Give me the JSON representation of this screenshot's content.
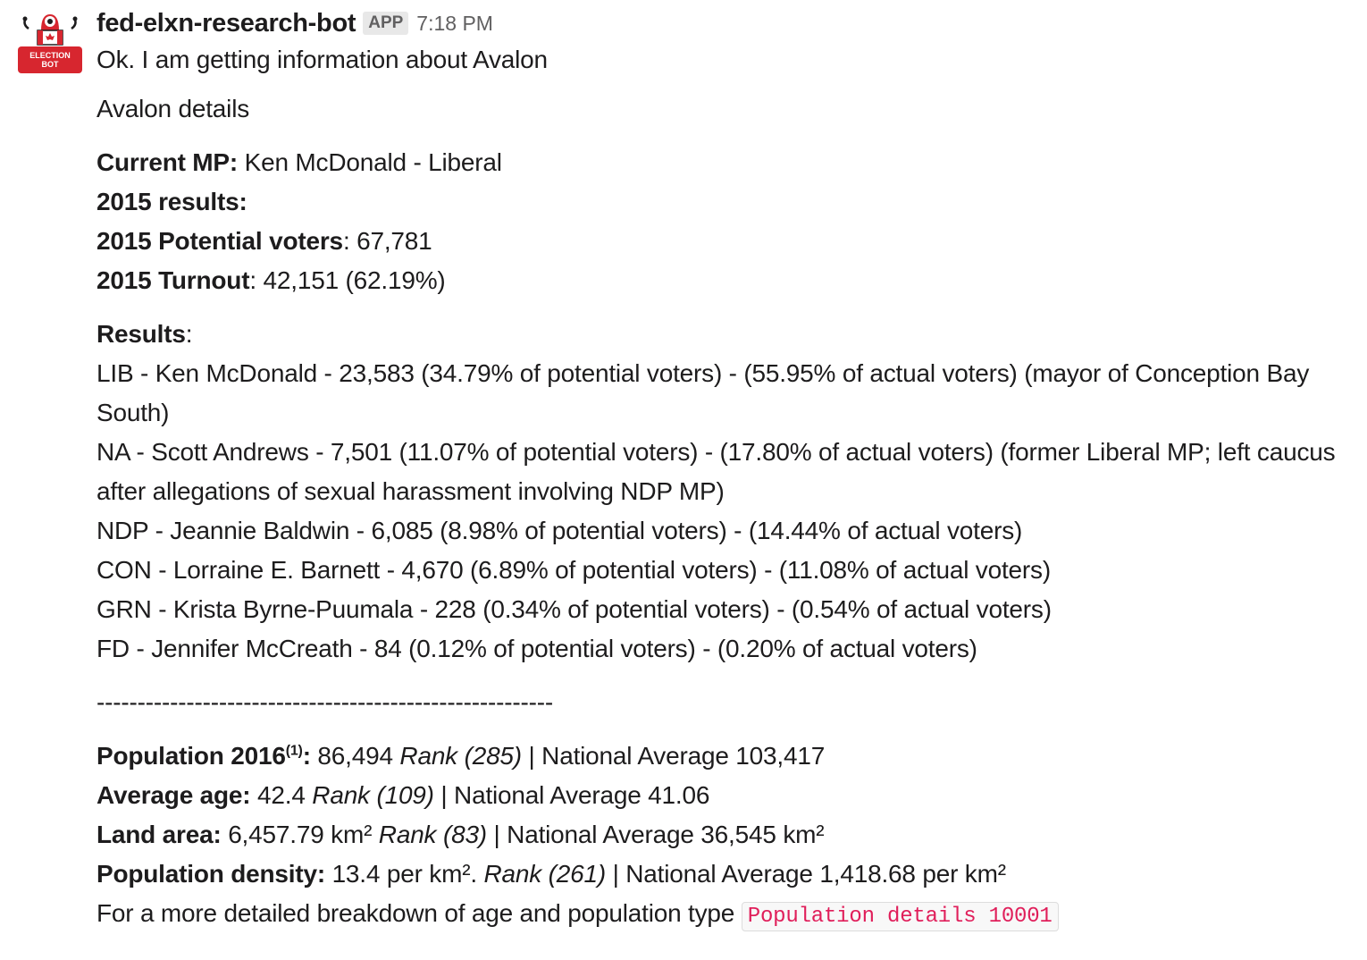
{
  "bot": {
    "name": "fed-elxn-research-bot",
    "badge": "APP",
    "time": "7:18 PM",
    "avatar_text_1": "ELECTION",
    "avatar_text_2": "BOT",
    "avatar_icon": "robot-canada-flag-icon"
  },
  "message": {
    "intro": "Ok. I am getting information about Avalon",
    "details_title": "Avalon details",
    "current_mp_label": "Current MP:",
    "current_mp_value": " Ken McDonald - Liberal",
    "results_2015_label": "2015 results:",
    "potential_voters_label": "2015 Potential voters",
    "potential_voters_value": ": 67,781",
    "turnout_label": "2015 Turnout",
    "turnout_value": ": 42,151 (62.19%)",
    "results_label": "Results",
    "results_colon": ":",
    "results": [
      "LIB - Ken McDonald - 23,583 (34.79% of potential voters) - (55.95% of actual voters) (mayor of Conception Bay South)",
      "NA - Scott Andrews - 7,501 (11.07% of potential voters) - (17.80% of actual voters) (former Liberal MP; left caucus after allegations of sexual harassment involving NDP MP)",
      "NDP - Jeannie Baldwin - 6,085 (8.98% of potential voters) - (14.44% of actual voters)",
      "CON - Lorraine E. Barnett - 4,670 (6.89% of potential voters) - (11.08% of actual voters)",
      "GRN - Krista Byrne-Puumala - 228 (0.34% of potential voters) - (0.54% of actual voters)",
      "FD - Jennifer McCreath - 84 (0.12% of potential voters) - (0.20% of actual voters)"
    ],
    "separator": "--------------------------------------------------------",
    "population": {
      "label": "Population 2016",
      "sup": "(1)",
      "colon": ":",
      "value": " 86,494 ",
      "rank": "Rank (285)",
      "national": " | National Average 103,417"
    },
    "age": {
      "label": "Average age:",
      "value": " 42.4 ",
      "rank": "Rank (109)",
      "national": " | National Average 41.06"
    },
    "land": {
      "label": "Land area:",
      "value": " 6,457.79 km² ",
      "rank": "Rank (83)",
      "national": " | National Average 36,545 km²"
    },
    "density": {
      "label": "Population density:",
      "value": " 13.4 per km². ",
      "rank": "Rank (261)",
      "national": " | National Average 1,418.68 per km²"
    },
    "breakdown_text": "For a more detailed breakdown of age and population type ",
    "breakdown_code": "Population details 10001"
  }
}
